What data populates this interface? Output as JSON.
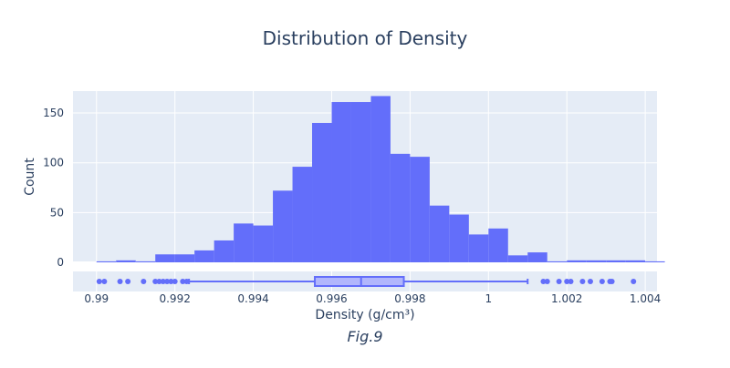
{
  "chart_data": {
    "type": "bar",
    "title": "Distribution of Density",
    "xlabel": "Density (g/cm³)",
    "ylabel": "Count",
    "caption": "Fig.9",
    "xlim": [
      0.9894,
      1.0043
    ],
    "ylim": [
      0,
      172
    ],
    "x_ticks": [
      0.99,
      0.992,
      0.994,
      0.996,
      0.998,
      1,
      1.002,
      1.004
    ],
    "y_ticks": [
      0,
      50,
      100,
      150
    ],
    "bin_start": 0.99,
    "bin_width": 0.0005,
    "counts": [
      1,
      2,
      1,
      8,
      8,
      12,
      22,
      39,
      37,
      72,
      96,
      140,
      161,
      161,
      167,
      109,
      106,
      57,
      48,
      28,
      34,
      7,
      10,
      1,
      2,
      2,
      2,
      2,
      1
    ],
    "box": {
      "q1": 0.99557,
      "median": 0.99675,
      "q3": 0.99784,
      "lower_fence": 0.99236,
      "upper_fence": 1.001,
      "outliers": [
        0.99007,
        0.9902,
        0.9906,
        0.9908,
        0.9912,
        0.9915,
        0.9916,
        0.9917,
        0.9918,
        0.9919,
        0.992,
        0.9922,
        0.9923,
        1.0014,
        1.0015,
        1.0018,
        1.002,
        1.0021,
        1.0024,
        1.0026,
        1.0029,
        1.0031,
        1.00315,
        1.0037
      ]
    },
    "colors": {
      "bar": "#636efa",
      "plot_bg": "#e5ecf6",
      "box_fill": "#b1b6fc",
      "text": "#2a3f5f"
    },
    "grid": true
  }
}
